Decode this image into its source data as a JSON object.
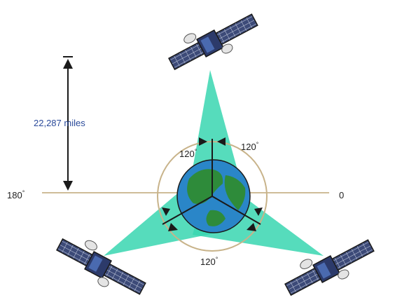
{
  "distance_label": "22,287 miles",
  "angle_labels": {
    "left_top": "120",
    "right_top": "120",
    "bottom": "120"
  },
  "degree_mark": "°",
  "axis_labels": {
    "left": "180",
    "right": "0"
  },
  "colors": {
    "beam": "#38d6b0",
    "earth_ocean": "#2a86c8",
    "earth_land": "#2e8b3a",
    "orbit": "#c8b38a",
    "panel": "#3c4a78"
  }
}
